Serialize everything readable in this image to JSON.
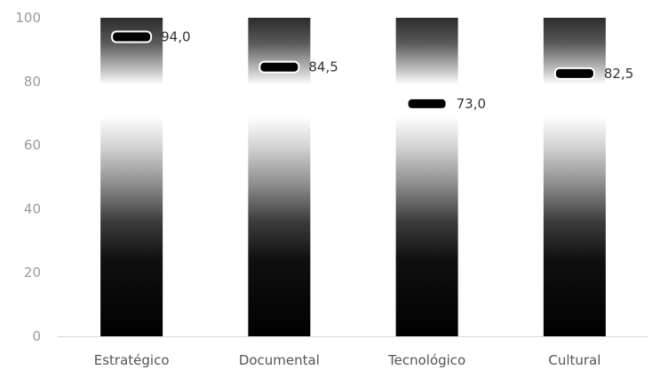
{
  "chart_data": {
    "type": "bar",
    "categories": [
      "Estratégico",
      "Documental",
      "Tecnológico",
      "Cultural"
    ],
    "series": [
      {
        "type": "bar",
        "values": [
          100,
          100,
          100,
          100
        ]
      },
      {
        "type": "marker",
        "values": [
          94.0,
          84.5,
          73.0,
          82.5
        ],
        "labels": [
          "94,0",
          "84,5",
          "73,0",
          "82,5"
        ]
      }
    ],
    "ylim": [
      0,
      100
    ],
    "yticks": [
      0,
      20,
      40,
      60,
      80,
      100
    ],
    "grid": false,
    "legend": "none",
    "colors": {
      "bar_top": "#2a2a2a",
      "bar_mid": "#ffffff",
      "bar_bottom": "#000000",
      "marker": "#000000",
      "baseline": "#d9d9d9"
    }
  }
}
